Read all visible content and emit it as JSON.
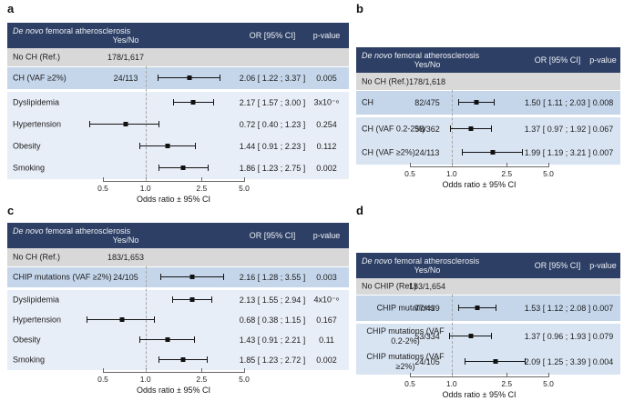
{
  "colors": {
    "header_bg": "#2d3f64",
    "header_text": "#eef1f7",
    "ref_bg": "#d8d8d8",
    "row_dark": "#c5d6eb",
    "row_light": "#e8eef7",
    "row_mid": "#d9e4f2",
    "marker": "#111111",
    "dash": "#a5a5a5",
    "axis": "#666666",
    "text": "#1c1c1c"
  },
  "figure_axis": {
    "label": "Odds ratio ± 95% CI",
    "scale": "log",
    "ticks": [
      "0.5",
      "1.0",
      "2.5",
      "5.0"
    ],
    "tick_values": [
      0.5,
      1.0,
      2.5,
      5.0
    ],
    "reference_line": 1.0
  },
  "chart_data": [
    {
      "type": "forest",
      "panel": "a",
      "title_italic": "De novo",
      "title_rest": " femoral atherosclerosis",
      "columns": {
        "counts": "Yes/No",
        "or": "OR [95% CI]",
        "p": "p-value"
      },
      "reference": {
        "label": "No CH (Ref.)",
        "counts": "178/1,617"
      },
      "rows": [
        {
          "label": "CH (VAF ≥2%)",
          "counts": "24/113",
          "or": 2.06,
          "ci": [
            1.22,
            3.37
          ],
          "or_text": "2.06 [ 1.22 ; 3.37 ]",
          "p": "0.005",
          "emphasis": true
        },
        {
          "label": "Dyslipidemia",
          "counts": "",
          "or": 2.17,
          "ci": [
            1.57,
            3.0
          ],
          "or_text": "2.17 [ 1.57 ; 3.00 ]",
          "p": "3x10⁻⁶",
          "emphasis": false
        },
        {
          "label": "Hypertension",
          "counts": "",
          "or": 0.72,
          "ci": [
            0.4,
            1.23
          ],
          "or_text": "0.72 [ 0.40 ; 1.23 ]",
          "p": "0.254",
          "emphasis": false
        },
        {
          "label": "Obesity",
          "counts": "",
          "or": 1.44,
          "ci": [
            0.91,
            2.23
          ],
          "or_text": "1.44 [ 0.91 ; 2.23 ]",
          "p": "0.112",
          "emphasis": false
        },
        {
          "label": "Smoking",
          "counts": "",
          "or": 1.86,
          "ci": [
            1.23,
            2.75
          ],
          "or_text": "1.86 [ 1.23 ; 2.75 ]",
          "p": "0.002",
          "emphasis": false
        }
      ]
    },
    {
      "type": "forest",
      "panel": "b",
      "title_italic": "De novo",
      "title_rest": " femoral atherosclerosis",
      "columns": {
        "counts": "Yes/No",
        "or": "OR [95% CI]",
        "p": "p-value"
      },
      "reference": {
        "label": "No CH (Ref.)",
        "counts": "178/1,618"
      },
      "rows": [
        {
          "label": "CH",
          "counts": "82/475",
          "or": 1.5,
          "ci": [
            1.11,
            2.03
          ],
          "or_text": "1.50 [ 1.11 ; 2.03 ]",
          "p": "0.008",
          "emphasis": true
        },
        {
          "label": "CH (VAF 0.2-2%)",
          "counts": "58/362",
          "or": 1.37,
          "ci": [
            0.97,
            1.92
          ],
          "or_text": "1.37 [ 0.97 ; 1.92 ]",
          "p": "0.067",
          "emphasis": false
        },
        {
          "label": "CH (VAF ≥2%)",
          "counts": "24/113",
          "or": 1.99,
          "ci": [
            1.19,
            3.21
          ],
          "or_text": "1.99 [ 1.19 ; 3.21 ]",
          "p": "0.007",
          "emphasis": false
        }
      ]
    },
    {
      "type": "forest",
      "panel": "c",
      "title_italic": "De novo",
      "title_rest": " femoral atherosclerosis",
      "columns": {
        "counts": "Yes/No",
        "or": "OR [95% CI]",
        "p": "p-value"
      },
      "reference": {
        "label": "No CH (Ref.)",
        "counts": "183/1,653"
      },
      "rows": [
        {
          "label": "CHIP mutations (VAF ≥2%)",
          "counts": "24/105",
          "or": 2.16,
          "ci": [
            1.28,
            3.55
          ],
          "or_text": "2.16 [ 1.28 ; 3.55 ]",
          "p": "0.003",
          "emphasis": true
        },
        {
          "label": "Dyslipidemia",
          "counts": "",
          "or": 2.13,
          "ci": [
            1.55,
            2.94
          ],
          "or_text": "2.13 [ 1.55 ; 2.94 ]",
          "p": "4x10⁻⁶",
          "emphasis": false
        },
        {
          "label": "Hypertension",
          "counts": "",
          "or": 0.68,
          "ci": [
            0.38,
            1.15
          ],
          "or_text": "0.68 [ 0.38 ; 1.15 ]",
          "p": "0.167",
          "emphasis": false
        },
        {
          "label": "Obesity",
          "counts": "",
          "or": 1.43,
          "ci": [
            0.91,
            2.21
          ],
          "or_text": "1.43 [ 0.91 ; 2.21 ]",
          "p": "0.11",
          "emphasis": false
        },
        {
          "label": "Smoking",
          "counts": "",
          "or": 1.85,
          "ci": [
            1.23,
            2.72
          ],
          "or_text": "1.85 [ 1.23 ; 2.72 ]",
          "p": "0.002",
          "emphasis": false
        }
      ]
    },
    {
      "type": "forest",
      "panel": "d",
      "title_italic": "De novo",
      "title_rest": " femoral atherosclerosis",
      "columns": {
        "counts": "Yes/No",
        "or": "OR [95% CI]",
        "p": "p-value"
      },
      "reference": {
        "label": "No CHIP (Ref.)",
        "counts": "183/1,654"
      },
      "rows": [
        {
          "label": "CHIP mutations",
          "counts": "77/439",
          "or": 1.53,
          "ci": [
            1.12,
            2.08
          ],
          "or_text": "1.53 [ 1.12 ; 2.08 ]",
          "p": "0.007",
          "emphasis": true
        },
        {
          "label": "CHIP mutations (VAF 0.2-2%)",
          "counts": "53/334",
          "or": 1.37,
          "ci": [
            0.96,
            1.93
          ],
          "or_text": "1.37 [ 0.96 ; 1.93 ]",
          "p": "0.079",
          "emphasis": false
        },
        {
          "label": "CHIP mutations (VAF ≥2%)",
          "counts": "24/105",
          "or": 2.09,
          "ci": [
            1.25,
            3.39
          ],
          "or_text": "2.09 [ 1.25 ; 3.39 ]",
          "p": "0.004",
          "emphasis": false
        }
      ]
    }
  ]
}
